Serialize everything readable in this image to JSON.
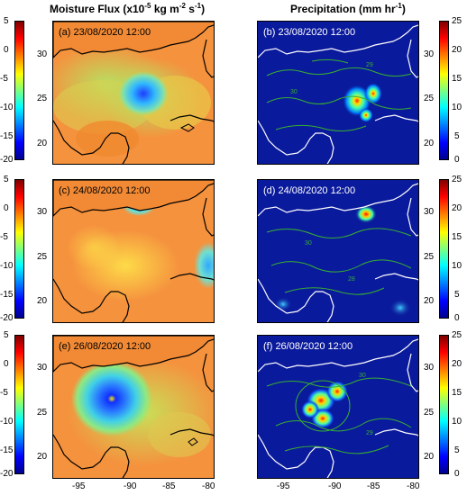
{
  "titles": {
    "left": {
      "main": "Moisture Flux (x10",
      "sup1": "-5",
      "mid": " kg m",
      "sup2": "-2",
      "tail": " s",
      "sup3": "-1",
      "end": ")"
    },
    "right": {
      "main": "Precipitation (mm hr",
      "sup1": "-1",
      "end": ")"
    }
  },
  "panels": [
    {
      "id": "a",
      "label": "(a) 23/08/2020 12:00",
      "kind": "moisture"
    },
    {
      "id": "b",
      "label": "(b) 23/08/2020 12:00",
      "kind": "precip"
    },
    {
      "id": "c",
      "label": "(c) 24/08/2020 12:00",
      "kind": "moisture"
    },
    {
      "id": "d",
      "label": "(d) 24/08/2020 12:00",
      "kind": "precip"
    },
    {
      "id": "e",
      "label": "(e) 26/08/2020 12:00",
      "kind": "moisture"
    },
    {
      "id": "f",
      "label": "(f) 26/08/2020 12:00",
      "kind": "precip"
    }
  ],
  "axes": {
    "left_outer_ticks": [
      "5",
      "0",
      "-5",
      "-10",
      "-15",
      "-20"
    ],
    "left_inner_ticks": [
      "30",
      "25",
      "20"
    ],
    "precip_cbar_ticks": [
      "25",
      "20",
      "15",
      "10",
      "5",
      "0"
    ],
    "precip_inner_ticks": [
      "30",
      "25",
      "20"
    ],
    "x_ticks": [
      "-95",
      "-90",
      "-85",
      "-80"
    ]
  },
  "contour_labels": [
    "30",
    "29",
    "30",
    "28",
    "30",
    "29"
  ],
  "colors": {
    "moisture_base": "#f5923e",
    "precip_base": "#0a1a9c",
    "coastline": "#000000",
    "precip_coast": "#ffffff",
    "contour": "#36b030"
  }
}
